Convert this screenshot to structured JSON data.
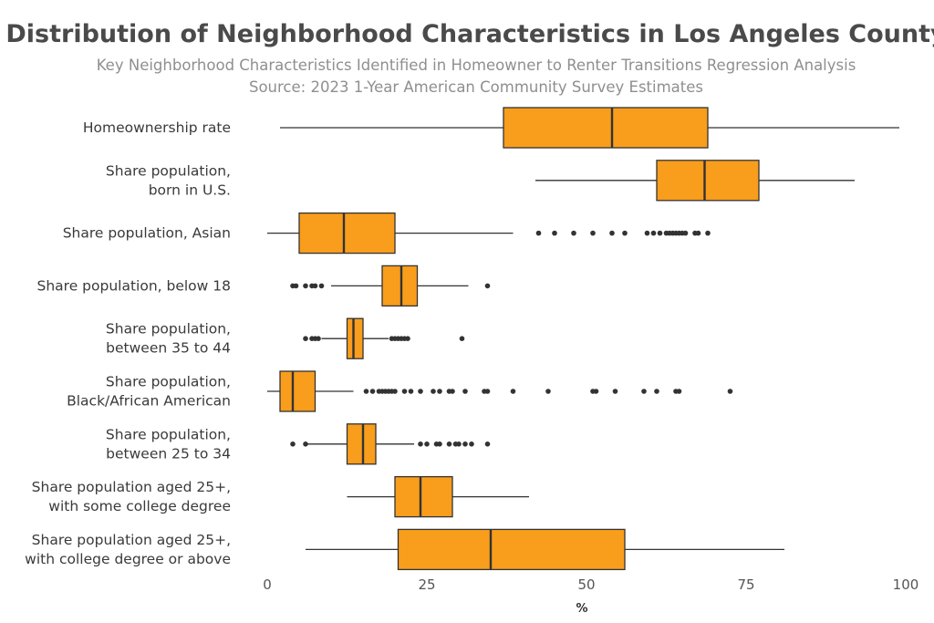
{
  "chart_data": {
    "type": "boxplot",
    "orientation": "horizontal",
    "title": "Distribution of Neighborhood Characteristics in Los Angeles County",
    "subtitle_lines": [
      "Key Neighborhood Characteristics Identified in Homeowner to Renter Transitions Regression Analysis",
      "Source: 2023 1-Year American Community Survey Estimates"
    ],
    "xlabel": "%",
    "xlim": [
      0,
      100
    ],
    "xticks": [
      0,
      25,
      50,
      75,
      100
    ],
    "grid": false,
    "box_color": "#f99d1c",
    "line_color": "#333333",
    "outlier_color": "#333333",
    "categories": [
      {
        "label_lines": [
          "Homeownership rate"
        ],
        "whisker_low": 2,
        "q1": 37,
        "median": 54,
        "q3": 69,
        "whisker_high": 99,
        "outliers": []
      },
      {
        "label_lines": [
          "Share population,",
          "born in U.S."
        ],
        "whisker_low": 42,
        "q1": 61,
        "median": 68.5,
        "q3": 77,
        "whisker_high": 92,
        "outliers": []
      },
      {
        "label_lines": [
          "Share population, Asian"
        ],
        "whisker_low": 0,
        "q1": 5,
        "median": 12,
        "q3": 20,
        "whisker_high": 38.5,
        "outliers": [
          42.5,
          45,
          48,
          51,
          54,
          56,
          59.5,
          60.5,
          61.5,
          62.5,
          63,
          63.5,
          64,
          64.5,
          65,
          65.5,
          67,
          67.5,
          69
        ]
      },
      {
        "label_lines": [
          "Share population, below 18"
        ],
        "whisker_low": 10,
        "q1": 18,
        "median": 21,
        "q3": 23.5,
        "whisker_high": 31.5,
        "outliers": [
          4,
          4.5,
          6,
          7,
          7.5,
          8.5,
          34.5
        ]
      },
      {
        "label_lines": [
          "Share population,",
          "between 35 to 44"
        ],
        "whisker_low": 8.5,
        "q1": 12.5,
        "median": 13.5,
        "q3": 15,
        "whisker_high": 19,
        "outliers": [
          6,
          7,
          7.5,
          8,
          19.5,
          20,
          20.5,
          21,
          21.5,
          22,
          30.5
        ]
      },
      {
        "label_lines": [
          "Share population,",
          "Black/African American"
        ],
        "whisker_low": 0,
        "q1": 2,
        "median": 4,
        "q3": 7.5,
        "whisker_high": 13.5,
        "outliers": [
          15.5,
          16.5,
          17.5,
          18,
          18.5,
          19,
          19.5,
          20,
          21.5,
          22.5,
          24,
          26,
          27,
          28.5,
          29,
          31,
          34,
          34.5,
          38.5,
          44,
          51,
          51.5,
          54.5,
          59,
          61,
          64,
          64.5,
          72.5
        ]
      },
      {
        "label_lines": [
          "Share population,",
          "between 25 to 34"
        ],
        "whisker_low": 6,
        "q1": 12.5,
        "median": 15,
        "q3": 17,
        "whisker_high": 23,
        "outliers": [
          4,
          6,
          24,
          25,
          26.5,
          27,
          28.5,
          29.5,
          30,
          31,
          32,
          34.5
        ]
      },
      {
        "label_lines": [
          "Share population aged 25+,",
          "with some college degree"
        ],
        "whisker_low": 12.5,
        "q1": 20,
        "median": 24,
        "q3": 29,
        "whisker_high": 41,
        "outliers": []
      },
      {
        "label_lines": [
          "Share population aged 25+,",
          "with college degree or above"
        ],
        "whisker_low": 6,
        "q1": 20.5,
        "median": 35,
        "q3": 56,
        "whisker_high": 81,
        "outliers": []
      }
    ]
  }
}
